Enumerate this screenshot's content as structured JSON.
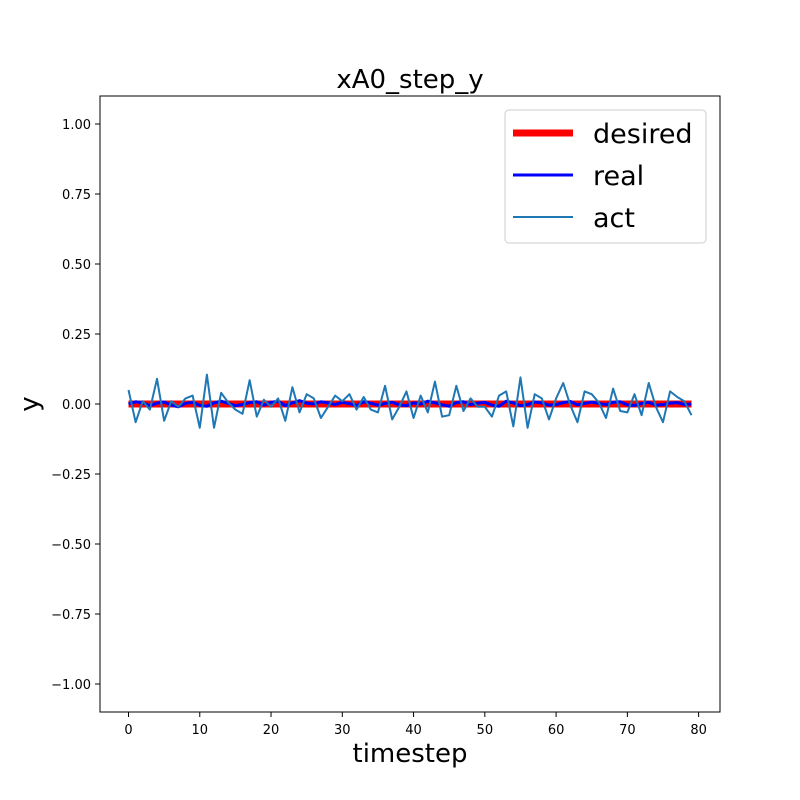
{
  "chart_data": {
    "type": "line",
    "title": "xA0_step_y",
    "xlabel": "timestep",
    "ylabel": "y",
    "xlim": [
      -4,
      83
    ],
    "ylim": [
      -1.1,
      1.1
    ],
    "xticks": [
      0,
      10,
      20,
      30,
      40,
      50,
      60,
      70,
      80
    ],
    "yticks": [
      1.0,
      0.75,
      0.5,
      0.25,
      0.0,
      -0.25,
      -0.5,
      -0.75,
      -1.0
    ],
    "ytick_labels": [
      "1.00",
      "0.75",
      "0.50",
      "0.25",
      "0.00",
      "−0.25",
      "−0.50",
      "−0.75",
      "−1.00"
    ],
    "grid": false,
    "legend_position": "top-right",
    "series": [
      {
        "name": "desired",
        "color": "#ff0000",
        "values": [
          0,
          0,
          0,
          0,
          0,
          0,
          0,
          0,
          0,
          0,
          0,
          0,
          0,
          0,
          0,
          0,
          0,
          0,
          0,
          0,
          0,
          0,
          0,
          0,
          0,
          0,
          0,
          0,
          0,
          0,
          0,
          0,
          0,
          0,
          0,
          0,
          0,
          0,
          0,
          0,
          0,
          0,
          0,
          0,
          0,
          0,
          0,
          0,
          0,
          0,
          0,
          0,
          0,
          0,
          0,
          0,
          0,
          0,
          0,
          0,
          0,
          0,
          0,
          0,
          0,
          0,
          0,
          0,
          0,
          0,
          0,
          0,
          0,
          0,
          0,
          0,
          0,
          0,
          0,
          0
        ]
      },
      {
        "name": "real",
        "color": "#0000ff",
        "values": [
          0.0,
          0.008,
          0.004,
          -0.006,
          0.003,
          0.007,
          -0.004,
          -0.01,
          0.002,
          0.006,
          -0.005,
          -0.008,
          0.004,
          0.01,
          0.002,
          -0.006,
          -0.002,
          0.005,
          0.008,
          -0.004,
          0.006,
          0.01,
          -0.006,
          0.004,
          0.012,
          0.003,
          0.0,
          0.008,
          0.004,
          -0.002,
          0.006,
          0.001,
          -0.005,
          0.008,
          0.003,
          -0.004,
          0.002,
          0.006,
          -0.003,
          -0.006,
          0.004,
          0.0,
          0.01,
          0.004,
          -0.003,
          -0.008,
          0.005,
          0.008,
          -0.002,
          0.003,
          0.006,
          -0.004,
          -0.008,
          0.01,
          0.004,
          -0.006,
          -0.002,
          0.007,
          0.004,
          -0.004,
          -0.002,
          0.005,
          0.009,
          -0.003,
          0.002,
          0.007,
          0.002,
          -0.002,
          0.006,
          0.008,
          -0.003,
          -0.005,
          0.002,
          0.006,
          -0.004,
          -0.002,
          0.003,
          0.005,
          -0.002,
          0.0
        ]
      },
      {
        "name": "act",
        "color": "#1f77b4",
        "values": [
          0.05,
          -0.065,
          0.01,
          -0.02,
          0.09,
          -0.06,
          0.01,
          -0.01,
          0.02,
          0.03,
          -0.085,
          0.105,
          -0.085,
          0.04,
          0.005,
          -0.02,
          -0.035,
          0.085,
          -0.045,
          0.015,
          -0.01,
          0.02,
          -0.06,
          0.06,
          -0.03,
          0.035,
          0.02,
          -0.05,
          -0.01,
          0.03,
          0.01,
          0.035,
          -0.02,
          0.025,
          -0.02,
          -0.03,
          0.065,
          -0.055,
          -0.01,
          0.045,
          -0.05,
          0.03,
          -0.03,
          0.08,
          -0.045,
          -0.04,
          0.065,
          -0.025,
          0.02,
          -0.01,
          -0.01,
          -0.045,
          0.03,
          0.045,
          -0.08,
          0.095,
          -0.085,
          0.035,
          0.02,
          -0.055,
          0.02,
          0.075,
          -0.005,
          -0.065,
          0.045,
          0.035,
          0.005,
          -0.05,
          0.055,
          -0.025,
          -0.03,
          0.035,
          -0.04,
          0.075,
          -0.01,
          -0.065,
          0.045,
          0.025,
          0.01,
          -0.04
        ]
      }
    ]
  }
}
